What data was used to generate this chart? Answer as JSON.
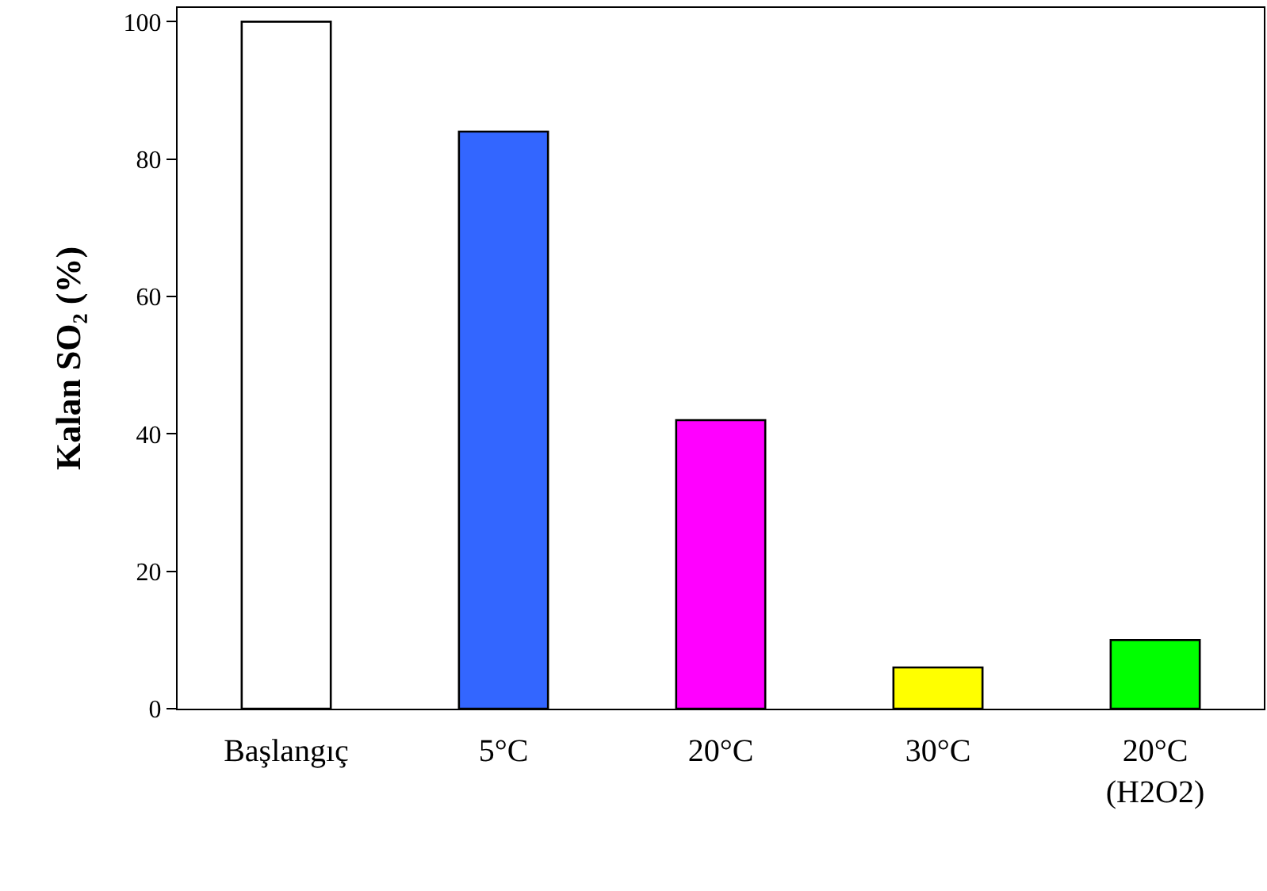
{
  "chart_data": {
    "type": "bar",
    "ylabel": "Kalan SO₂ (%)",
    "categories": [
      "Başlangıç",
      "5°C",
      "20°C",
      "30°C",
      "20°C\n(H2O2)"
    ],
    "values": [
      100,
      84,
      42,
      6,
      10
    ],
    "colors": [
      "#ffffff",
      "#3366ff",
      "#ff00ff",
      "#ffff00",
      "#00ff00"
    ],
    "ylim": [
      0,
      102
    ],
    "yticks": [
      0,
      20,
      40,
      60,
      80,
      100
    ],
    "grid": false
  }
}
